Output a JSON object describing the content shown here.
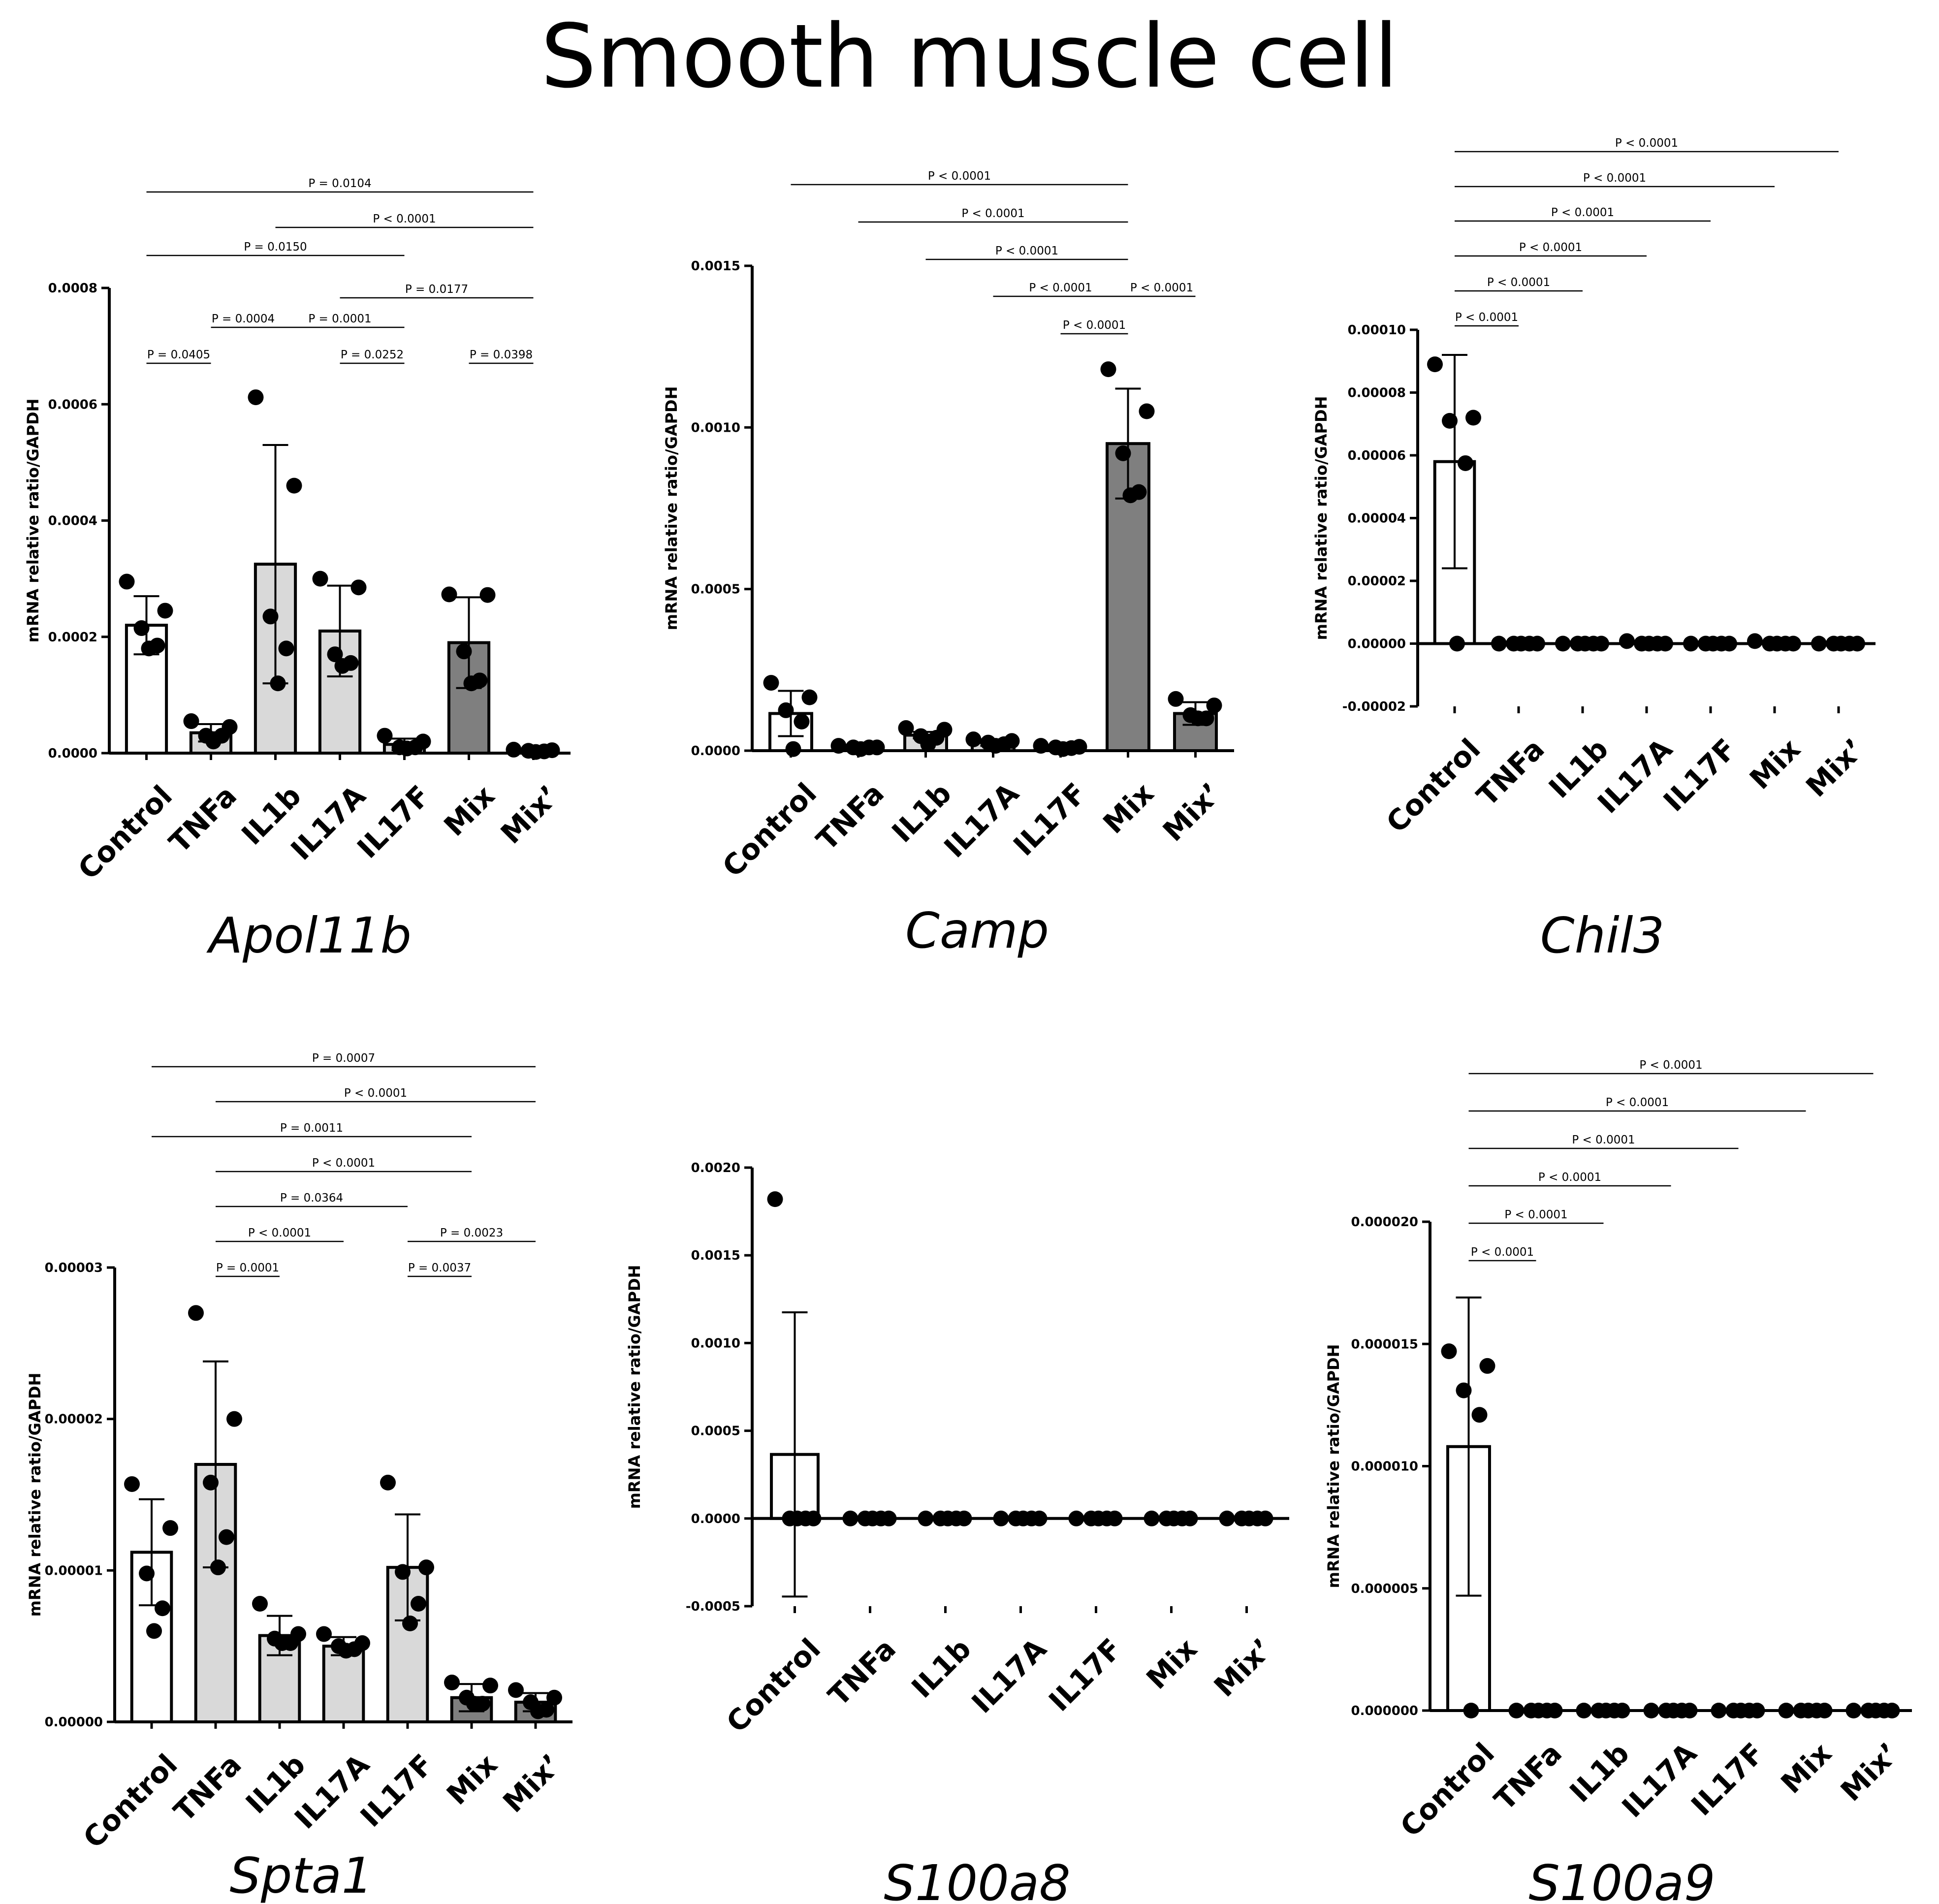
{
  "title": "Smooth muscle cell",
  "chart_data": [
    {
      "type": "bar",
      "gene": "Apol11b",
      "ylabel": "mRNA relative ratio/GAPDH",
      "categories": [
        "Control",
        "TNFa",
        "IL1b",
        "IL17A",
        "IL17F",
        "Mix",
        "Mix’"
      ],
      "ylim": [
        0,
        0.0008
      ],
      "yticks": [
        0.0,
        0.0002,
        0.0004,
        0.0006,
        0.0008
      ],
      "ytick_labels": [
        "0.0000",
        "0.0002",
        "0.0004",
        "0.0006",
        "0.0008"
      ],
      "fills": [
        "#ffffff",
        "#d9d9d9",
        "#d9d9d9",
        "#d9d9d9",
        "#d9d9d9",
        "#7f7f7f",
        "#7f7f7f"
      ],
      "means": [
        0.00022,
        3.5e-05,
        0.000325,
        0.00021,
        1.5e-05,
        0.00019,
        4e-06
      ],
      "sd": [
        5e-05,
        1.5e-05,
        0.000205,
        7.8e-05,
        1e-05,
        7.8e-05,
        3e-06
      ],
      "points": [
        [
          0.000295,
          0.000245,
          0.000215,
          0.000185,
          0.00018
        ],
        [
          5.5e-05,
          4.5e-05,
          3e-05,
          3e-05,
          2e-05
        ],
        [
          0.000612,
          0.00046,
          0.000235,
          0.00018,
          0.00012
        ],
        [
          0.0003,
          0.000285,
          0.00017,
          0.000155,
          0.00015
        ],
        [
          3e-05,
          2e-05,
          1e-05,
          1e-05,
          8e-06
        ],
        [
          0.000273,
          0.000272,
          0.000175,
          0.000125,
          0.00012
        ],
        [
          6e-06,
          5e-06,
          4e-06,
          3e-06,
          2e-06
        ]
      ],
      "comparisons": [
        {
          "from": 0,
          "to": 6,
          "label": "P = 0.0104"
        },
        {
          "from": 2,
          "to": 6,
          "label": "P < 0.0001"
        },
        {
          "from": 0,
          "to": 4,
          "label": "P = 0.0150"
        },
        {
          "from": 3,
          "to": 6,
          "label": "P = 0.0177"
        },
        {
          "from": 1,
          "to": 2,
          "label": "P = 0.0004"
        },
        {
          "from": 2,
          "to": 4,
          "label": "P = 0.0001"
        },
        {
          "from": 0,
          "to": 1,
          "label": "P = 0.0405"
        },
        {
          "from": 3,
          "to": 4,
          "label": "P = 0.0252"
        },
        {
          "from": 5,
          "to": 6,
          "label": "P = 0.0398"
        }
      ]
    },
    {
      "type": "bar",
      "gene": "Camp",
      "ylabel": "mRNA relative ratio/GAPDH",
      "categories": [
        "Control",
        "TNFa",
        "IL1b",
        "IL17A",
        "IL17F",
        "Mix",
        "Mix’"
      ],
      "ylim": [
        0,
        0.0015
      ],
      "yticks": [
        0.0,
        0.0005,
        0.001,
        0.0015
      ],
      "ytick_labels": [
        "0.0000",
        "0.0005",
        "0.0010",
        "0.0015"
      ],
      "fills": [
        "#ffffff",
        "#d9d9d9",
        "#d9d9d9",
        "#d9d9d9",
        "#d9d9d9",
        "#7f7f7f",
        "#7f7f7f"
      ],
      "means": [
        0.000115,
        1e-05,
        4.8e-05,
        2.5e-05,
        1e-05,
        0.00095,
        0.000115
      ],
      "sd": [
        7e-05,
        5e-06,
        1e-05,
        1e-05,
        4e-06,
        0.00017,
        3.5e-05
      ],
      "points": [
        [
          0.00021,
          0.000165,
          0.000125,
          9e-05,
          5e-06
        ],
        [
          1.5e-05,
          1e-05,
          1e-05,
          1e-05,
          5e-06
        ],
        [
          7e-05,
          6.5e-05,
          4.5e-05,
          4e-05,
          2e-05
        ],
        [
          3.5e-05,
          3e-05,
          2.5e-05,
          2e-05,
          1.5e-05
        ],
        [
          1.5e-05,
          1.2e-05,
          1e-05,
          8e-06,
          5e-06
        ],
        [
          0.00118,
          0.00105,
          0.00092,
          0.0008,
          0.00079
        ],
        [
          0.00016,
          0.00014,
          0.00011,
          0.0001,
          0.0001
        ]
      ],
      "comparisons": [
        {
          "from": 0,
          "to": 5,
          "label": "P < 0.0001"
        },
        {
          "from": 1,
          "to": 5,
          "label": "P < 0.0001"
        },
        {
          "from": 2,
          "to": 5,
          "label": "P < 0.0001"
        },
        {
          "from": 3,
          "to": 5,
          "label": "P < 0.0001"
        },
        {
          "from": 5,
          "to": 6,
          "label": "P < 0.0001"
        },
        {
          "from": 4,
          "to": 5,
          "label": "P < 0.0001"
        }
      ]
    },
    {
      "type": "bar",
      "gene": "Chil3",
      "ylabel": "mRNA relative ratio/GAPDH",
      "categories": [
        "Control",
        "TNFa",
        "IL1b",
        "IL17A",
        "IL17F",
        "Mix",
        "Mix’"
      ],
      "ylim": [
        -2e-05,
        0.0001
      ],
      "yticks": [
        -2e-05,
        0.0,
        2e-05,
        4e-05,
        6e-05,
        8e-05,
        0.0001
      ],
      "ytick_labels": [
        "-0.00002",
        "0.00000",
        "0.00002",
        "0.00004",
        "0.00006",
        "0.00008",
        "0.00010"
      ],
      "fills": [
        "#ffffff",
        "#ffffff",
        "#ffffff",
        "#ffffff",
        "#ffffff",
        "#ffffff",
        "#ffffff"
      ],
      "means": [
        5.8e-05,
        0,
        0,
        0,
        0,
        0,
        0
      ],
      "sd": [
        3.4e-05,
        0,
        0,
        0,
        0,
        0,
        0
      ],
      "points": [
        [
          8.9e-05,
          7.2e-05,
          7.1e-05,
          5.75e-05,
          0
        ],
        [
          0,
          0,
          0,
          0,
          0
        ],
        [
          0,
          0,
          0,
          0,
          0
        ],
        [
          8e-07,
          0,
          0,
          0,
          0
        ],
        [
          0,
          0,
          0,
          0,
          0
        ],
        [
          8e-07,
          0,
          0,
          0,
          0
        ],
        [
          0,
          0,
          0,
          0,
          0
        ]
      ],
      "comparisons": [
        {
          "from": 0,
          "to": 6,
          "label": "P < 0.0001"
        },
        {
          "from": 0,
          "to": 5,
          "label": "P < 0.0001"
        },
        {
          "from": 0,
          "to": 4,
          "label": "P < 0.0001"
        },
        {
          "from": 0,
          "to": 3,
          "label": "P < 0.0001"
        },
        {
          "from": 0,
          "to": 2,
          "label": "P < 0.0001"
        },
        {
          "from": 0,
          "to": 1,
          "label": "P < 0.0001"
        }
      ]
    },
    {
      "type": "bar",
      "gene": "Spta1",
      "ylabel": "mRNA relative ratio/GAPDH",
      "categories": [
        "Control",
        "TNFa",
        "IL1b",
        "IL17A",
        "IL17F",
        "Mix",
        "Mix’"
      ],
      "ylim": [
        0,
        3e-05
      ],
      "yticks": [
        0.0,
        1e-05,
        2e-05,
        3e-05
      ],
      "ytick_labels": [
        "0.00000",
        "0.00001",
        "0.00002",
        "0.00003"
      ],
      "fills": [
        "#ffffff",
        "#d9d9d9",
        "#d9d9d9",
        "#d9d9d9",
        "#d9d9d9",
        "#7f7f7f",
        "#7f7f7f"
      ],
      "means": [
        1.12e-05,
        1.7e-05,
        5.7e-06,
        5e-06,
        1.02e-05,
        1.6e-06,
        1.3e-06
      ],
      "sd": [
        3.5e-06,
        6.8e-06,
        1.3e-06,
        6e-07,
        3.5e-06,
        9e-07,
        6e-07
      ],
      "points": [
        [
          1.57e-05,
          1.28e-05,
          9.8e-06,
          7.5e-06,
          6e-06
        ],
        [
          2.7e-05,
          2e-05,
          1.58e-05,
          1.22e-05,
          1.02e-05
        ],
        [
          7.8e-06,
          5.8e-06,
          5.5e-06,
          5.2e-06,
          5.2e-06
        ],
        [
          5.8e-06,
          5.2e-06,
          5e-06,
          4.8e-06,
          4.7e-06
        ],
        [
          1.58e-05,
          1.02e-05,
          9.9e-06,
          7.8e-06,
          6.5e-06
        ],
        [
          2.6e-06,
          2.4e-06,
          1.6e-06,
          1.2e-06,
          1.2e-06
        ],
        [
          2.1e-06,
          1.6e-06,
          1.3e-06,
          8e-07,
          7e-07
        ]
      ],
      "comparisons": [
        {
          "from": 0,
          "to": 6,
          "label": "P = 0.0007"
        },
        {
          "from": 1,
          "to": 6,
          "label": "P < 0.0001"
        },
        {
          "from": 0,
          "to": 5,
          "label": "P = 0.0011"
        },
        {
          "from": 1,
          "to": 5,
          "label": "P < 0.0001"
        },
        {
          "from": 1,
          "to": 4,
          "label": "P = 0.0364"
        },
        {
          "from": 1,
          "to": 3,
          "label": "P < 0.0001"
        },
        {
          "from": 4,
          "to": 6,
          "label": "P = 0.0023"
        },
        {
          "from": 1,
          "to": 2,
          "label": "P = 0.0001"
        },
        {
          "from": 4,
          "to": 5,
          "label": "P = 0.0037"
        }
      ]
    },
    {
      "type": "bar",
      "gene": "S100a8",
      "ylabel": "mRNA relative ratio/GAPDH",
      "categories": [
        "Control",
        "TNFa",
        "IL1b",
        "IL17A",
        "IL17F",
        "Mix",
        "Mix’"
      ],
      "ylim": [
        -0.0005,
        0.002
      ],
      "yticks": [
        -0.0005,
        0.0,
        0.0005,
        0.001,
        0.0015,
        0.002
      ],
      "ytick_labels": [
        "-0.0005",
        "0.0000",
        "0.0005",
        "0.0010",
        "0.0015",
        "0.0020"
      ],
      "fills": [
        "#ffffff",
        "#ffffff",
        "#ffffff",
        "#ffffff",
        "#ffffff",
        "#ffffff",
        "#ffffff"
      ],
      "means": [
        0.000365,
        0,
        0,
        0,
        0,
        0,
        0
      ],
      "sd": [
        0.00081,
        0,
        0,
        0,
        0,
        0,
        0
      ],
      "points": [
        [
          0.00182,
          0,
          0,
          0,
          0
        ],
        [
          0,
          0,
          0,
          0,
          0
        ],
        [
          0,
          0,
          0,
          0,
          0
        ],
        [
          0,
          0,
          0,
          0,
          0
        ],
        [
          0,
          0,
          0,
          0,
          0
        ],
        [
          0,
          0,
          0,
          0,
          0
        ],
        [
          0,
          0,
          0,
          0,
          0
        ]
      ],
      "comparisons": []
    },
    {
      "type": "bar",
      "gene": "S100a9",
      "ylabel": "mRNA relative ratio/GAPDH",
      "categories": [
        "Control",
        "TNFa",
        "IL1b",
        "IL17A",
        "IL17F",
        "Mix",
        "Mix’"
      ],
      "ylim": [
        0,
        2e-05
      ],
      "yticks": [
        0.0,
        5e-06,
        1e-05,
        1.5e-05,
        2e-05
      ],
      "ytick_labels": [
        "0.000000",
        "0.000005",
        "0.000010",
        "0.000015",
        "0.000020"
      ],
      "fills": [
        "#ffffff",
        "#ffffff",
        "#ffffff",
        "#ffffff",
        "#ffffff",
        "#ffffff",
        "#ffffff"
      ],
      "means": [
        1.08e-05,
        0,
        0,
        0,
        0,
        0,
        0
      ],
      "sd": [
        6.1e-06,
        0,
        0,
        0,
        0,
        0,
        0
      ],
      "points": [
        [
          1.47e-05,
          1.41e-05,
          1.31e-05,
          1.21e-05,
          0
        ],
        [
          0,
          0,
          0,
          0,
          0
        ],
        [
          0,
          0,
          0,
          0,
          0
        ],
        [
          0,
          0,
          0,
          0,
          0
        ],
        [
          0,
          0,
          0,
          0,
          0
        ],
        [
          0,
          0,
          0,
          0,
          0
        ],
        [
          0,
          0,
          0,
          0,
          0
        ]
      ],
      "comparisons": [
        {
          "from": 0,
          "to": 6,
          "label": "P < 0.0001"
        },
        {
          "from": 0,
          "to": 5,
          "label": "P < 0.0001"
        },
        {
          "from": 0,
          "to": 4,
          "label": "P < 0.0001"
        },
        {
          "from": 0,
          "to": 3,
          "label": "P < 0.0001"
        },
        {
          "from": 0,
          "to": 2,
          "label": "P < 0.0001"
        },
        {
          "from": 0,
          "to": 1,
          "label": "P < 0.0001"
        }
      ]
    }
  ]
}
